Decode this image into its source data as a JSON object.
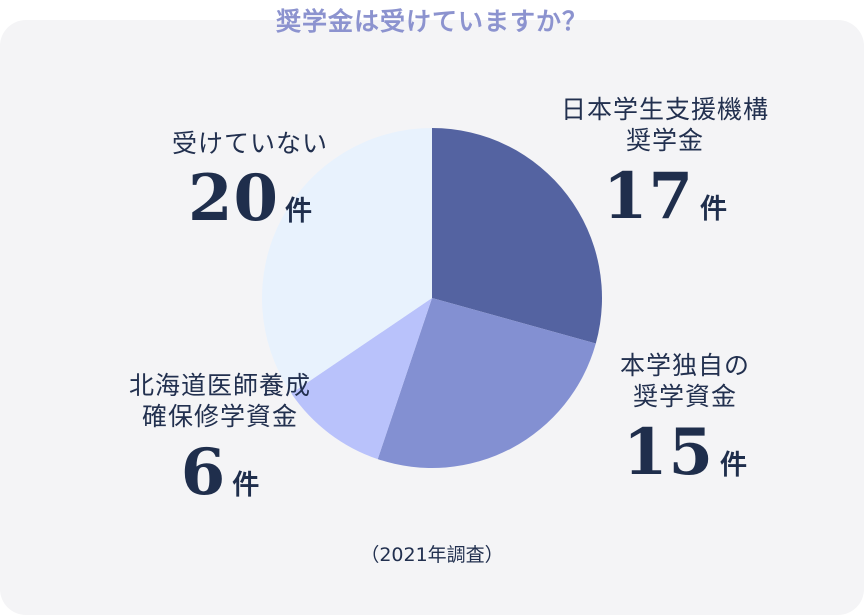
{
  "title": "奨学金は受けていますか？",
  "note": "（2021年調査）",
  "unit": "件",
  "chart_data": {
    "type": "pie",
    "title": "奨学金は受けていますか？",
    "slices": [
      {
        "label_lines": [
          "日本学生支援機構",
          "奨学金"
        ],
        "value": 17,
        "color": "#5463a1"
      },
      {
        "label_lines": [
          "本学独自の",
          "奨学資金"
        ],
        "value": 15,
        "color": "#8390d2"
      },
      {
        "label_lines": [
          "北海道医師養成",
          "確保修学資金"
        ],
        "value": 6,
        "color": "#b9c2fb"
      },
      {
        "label_lines": [
          "受けていない"
        ],
        "value": 20,
        "color": "#e8f2fd"
      }
    ],
    "unit": "件",
    "start_angle_deg": 0,
    "direction": "clockwise"
  }
}
